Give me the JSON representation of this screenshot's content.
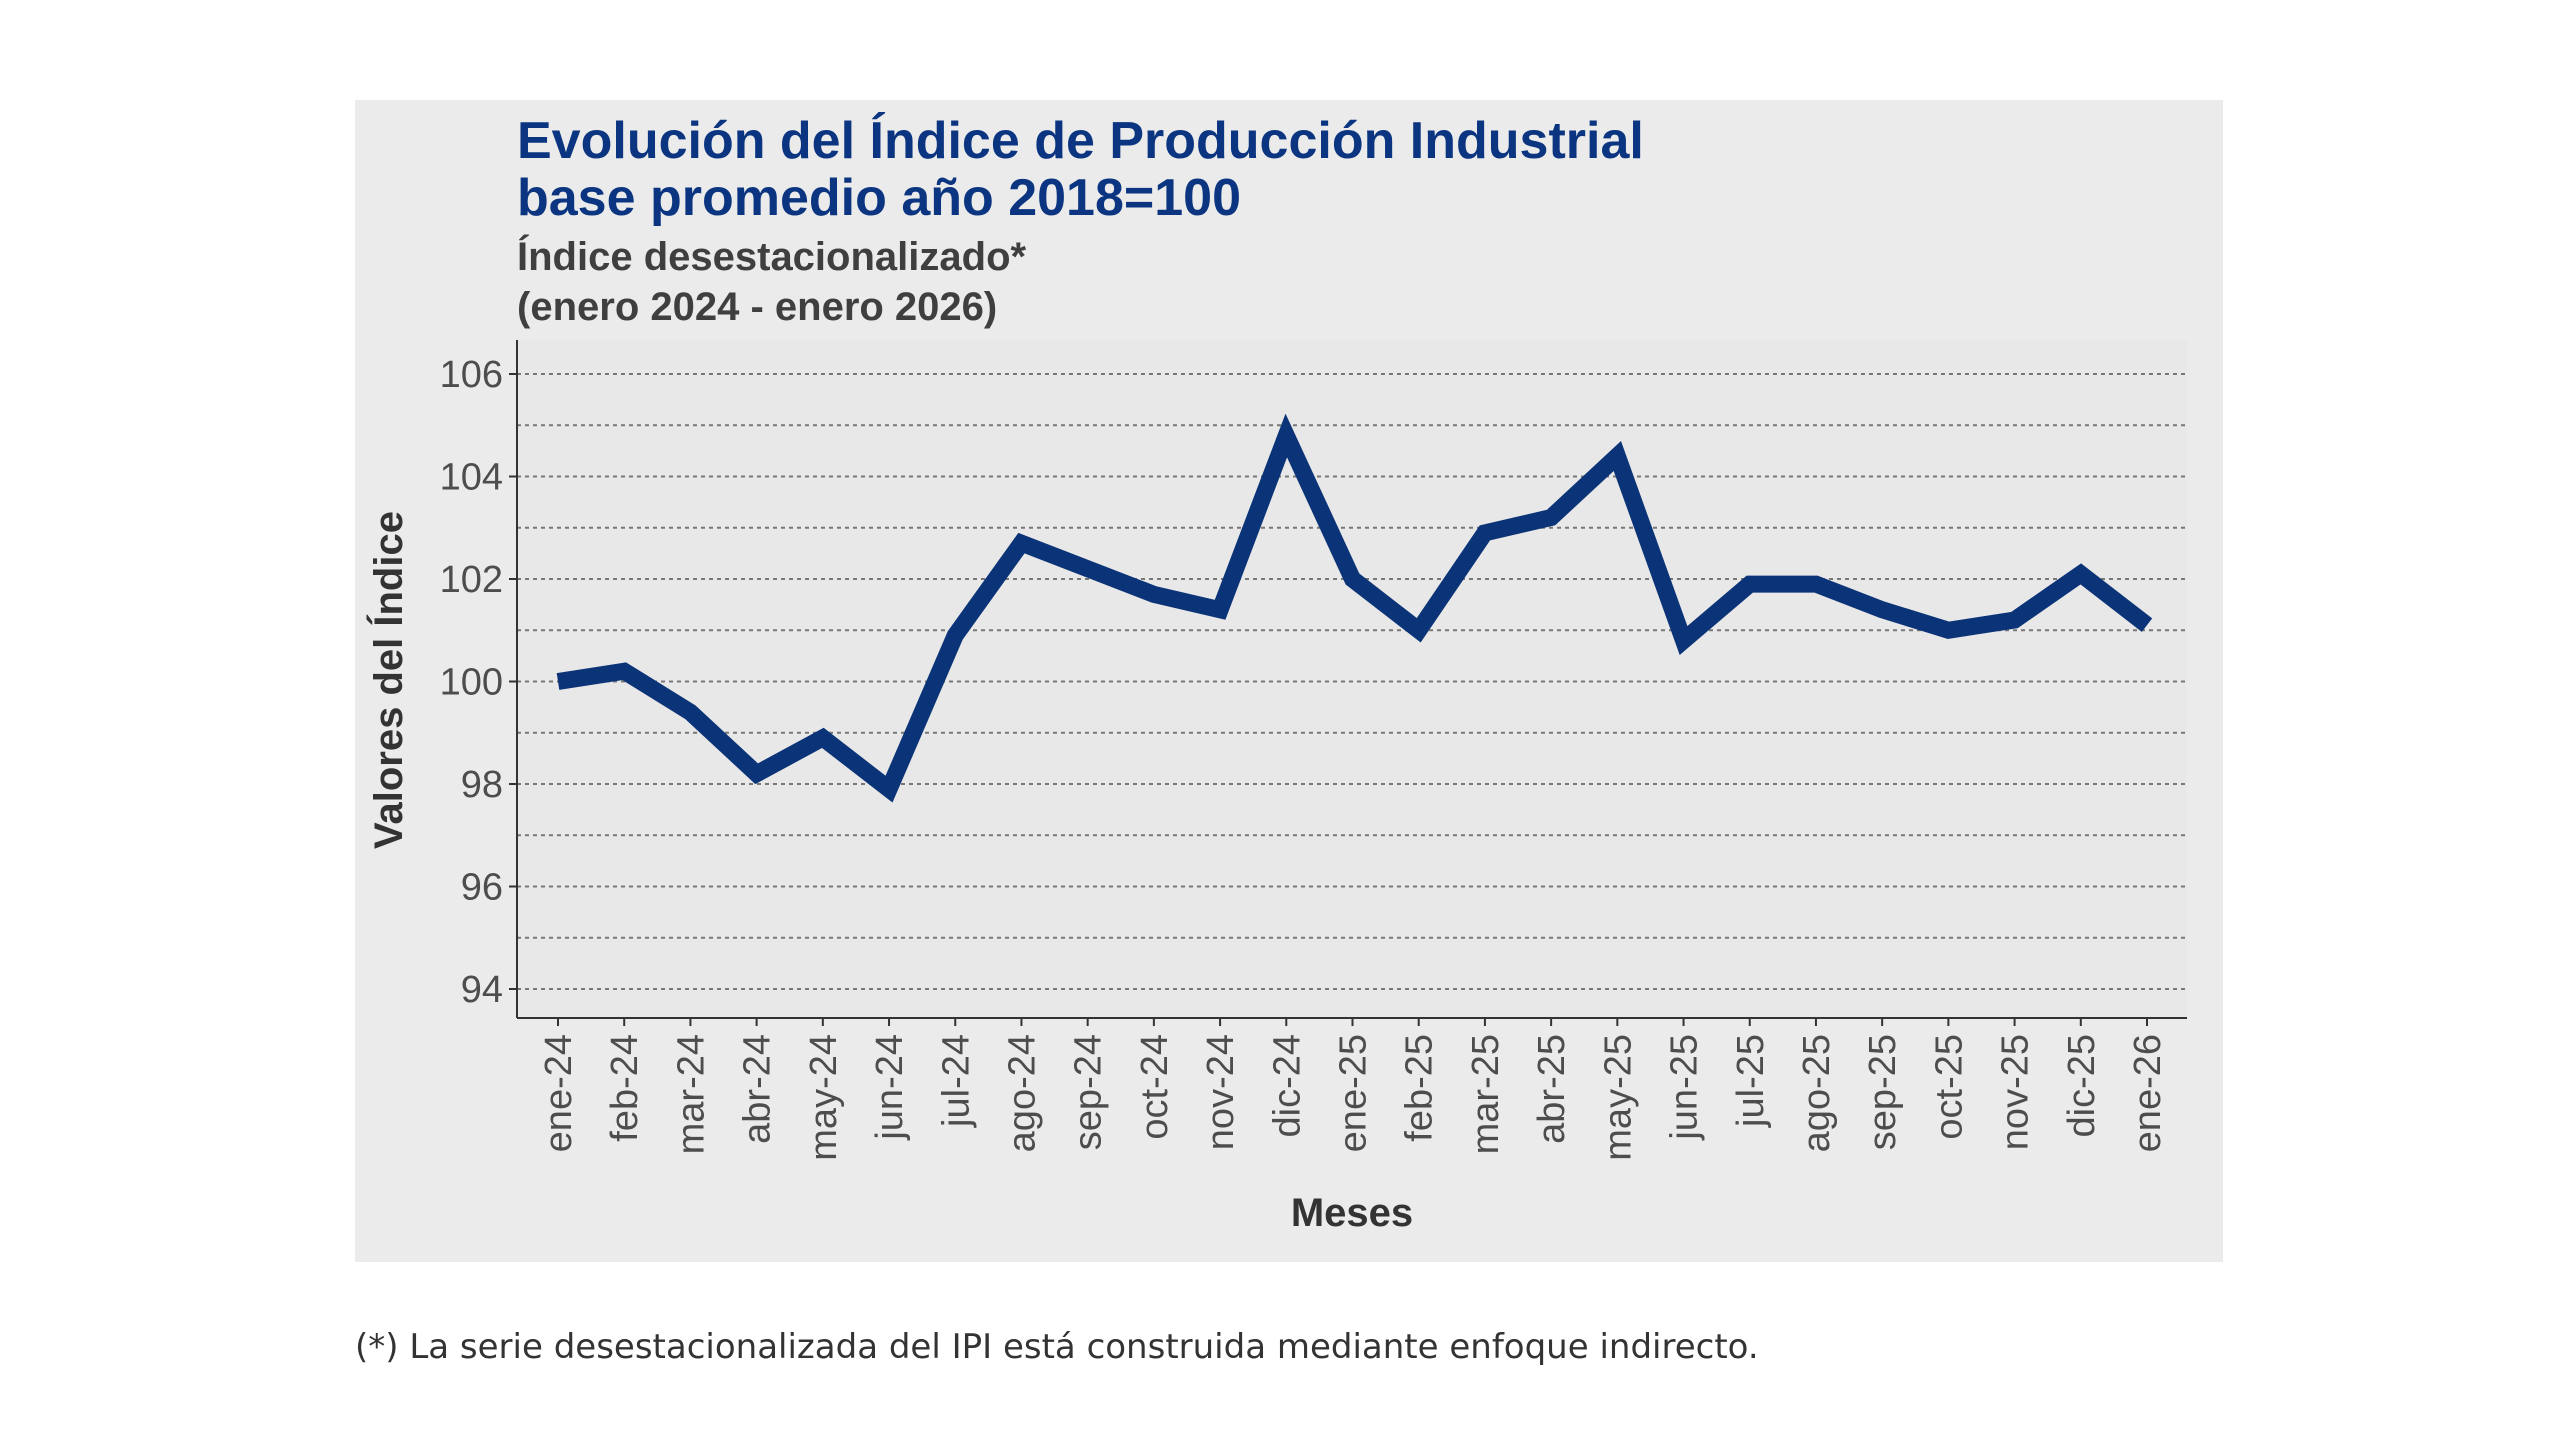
{
  "chart_data": {
    "type": "line",
    "title": "Evolución del Índice de Producción Industrial",
    "title_line2": "base promedio año 2018=100",
    "subtitle": "Índice desestacionalizado*",
    "subtitle_line2": "(enero 2024 - enero 2026)",
    "xlabel": "Meses",
    "ylabel": "Valores del Índice",
    "ylim": [
      93.6,
      106.6
    ],
    "yticks": [
      94,
      96,
      98,
      100,
      102,
      104,
      106
    ],
    "grid": true,
    "categories": [
      "ene-24",
      "feb-24",
      "mar-24",
      "abr-24",
      "may-24",
      "jun-24",
      "jul-24",
      "ago-24",
      "sep-24",
      "oct-24",
      "nov-24",
      "dic-24",
      "ene-25",
      "feb-25",
      "mar-25",
      "abr-25",
      "may-25",
      "jun-25",
      "jul-25",
      "ago-25",
      "sep-25",
      "oct-25",
      "nov-25",
      "dic-25",
      "ene-26"
    ],
    "series": [
      {
        "values": [
          100.0,
          100.2,
          99.4,
          98.2,
          98.9,
          97.9,
          100.9,
          102.7,
          102.2,
          101.7,
          101.4,
          104.8,
          102.0,
          101.0,
          102.9,
          103.2,
          104.4,
          100.8,
          101.9,
          101.9,
          101.4,
          101.0,
          101.2,
          102.1,
          101.1
        ],
        "color": "#0b3377"
      }
    ],
    "panel_background": "#ebebeb",
    "plot_background": "#e9e9e9"
  },
  "footnote": "(*) La serie desestacionalizada del IPI está construida mediante enfoque indirecto."
}
